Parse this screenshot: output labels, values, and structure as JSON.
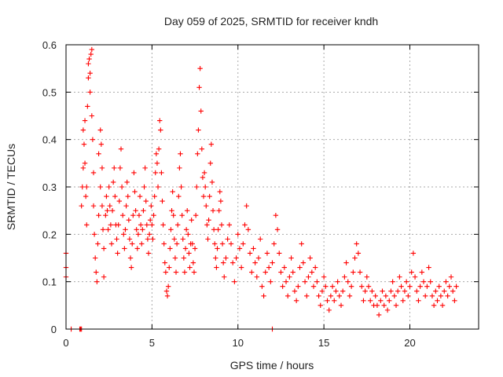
{
  "chart_data": {
    "type": "scatter",
    "title": "Day 059 of 2025, SRMTID for receiver kndh",
    "xlabel": "GPS time / hours",
    "ylabel": "SRMTID / TECUs",
    "xlim": [
      0,
      24
    ],
    "ylim": [
      0,
      0.6
    ],
    "xticks": [
      0,
      5,
      10,
      15,
      20
    ],
    "yticks": [
      0,
      0.1,
      0.2,
      0.3,
      0.4,
      0.5,
      0.6
    ],
    "grid": true,
    "marker": "+",
    "color": "#ff0000",
    "series": [
      {
        "name": "SRMTID",
        "points": [
          [
            0.0,
            0.16
          ],
          [
            0.0,
            0.13
          ],
          [
            0.0,
            0.11
          ],
          [
            0.3,
            0.0
          ],
          [
            0.8,
            0.0
          ],
          [
            0.85,
            0.0
          ],
          [
            0.9,
            0.0
          ],
          [
            0.9,
            0.26
          ],
          [
            0.95,
            0.3
          ],
          [
            1.0,
            0.34
          ],
          [
            1.0,
            0.42
          ],
          [
            1.05,
            0.39
          ],
          [
            1.1,
            0.44
          ],
          [
            1.1,
            0.35
          ],
          [
            1.15,
            0.28
          ],
          [
            1.2,
            0.3
          ],
          [
            1.2,
            0.22
          ],
          [
            1.25,
            0.47
          ],
          [
            1.3,
            0.53
          ],
          [
            1.3,
            0.56
          ],
          [
            1.35,
            0.57
          ],
          [
            1.4,
            0.54
          ],
          [
            1.4,
            0.5
          ],
          [
            1.45,
            0.58
          ],
          [
            1.5,
            0.59
          ],
          [
            1.5,
            0.45
          ],
          [
            1.55,
            0.4
          ],
          [
            1.6,
            0.33
          ],
          [
            1.6,
            0.26
          ],
          [
            1.65,
            0.2
          ],
          [
            1.7,
            0.15
          ],
          [
            1.75,
            0.12
          ],
          [
            1.8,
            0.1
          ],
          [
            1.85,
            0.18
          ],
          [
            1.9,
            0.24
          ],
          [
            1.9,
            0.37
          ],
          [
            2.0,
            0.42
          ],
          [
            2.0,
            0.3
          ],
          [
            2.05,
            0.39
          ],
          [
            2.1,
            0.34
          ],
          [
            2.1,
            0.26
          ],
          [
            2.15,
            0.21
          ],
          [
            2.2,
            0.17
          ],
          [
            2.2,
            0.11
          ],
          [
            2.3,
            0.24
          ],
          [
            2.35,
            0.28
          ],
          [
            2.4,
            0.25
          ],
          [
            2.45,
            0.21
          ],
          [
            2.5,
            0.3
          ],
          [
            2.55,
            0.26
          ],
          [
            2.6,
            0.22
          ],
          [
            2.65,
            0.18
          ],
          [
            2.7,
            0.25
          ],
          [
            2.75,
            0.31
          ],
          [
            2.8,
            0.34
          ],
          [
            2.85,
            0.28
          ],
          [
            2.9,
            0.22
          ],
          [
            2.95,
            0.19
          ],
          [
            3.0,
            0.16
          ],
          [
            3.05,
            0.22
          ],
          [
            3.1,
            0.27
          ],
          [
            3.15,
            0.34
          ],
          [
            3.2,
            0.38
          ],
          [
            3.25,
            0.3
          ],
          [
            3.3,
            0.24
          ],
          [
            3.35,
            0.2
          ],
          [
            3.4,
            0.17
          ],
          [
            3.45,
            0.21
          ],
          [
            3.5,
            0.26
          ],
          [
            3.55,
            0.31
          ],
          [
            3.6,
            0.28
          ],
          [
            3.65,
            0.23
          ],
          [
            3.7,
            0.19
          ],
          [
            3.75,
            0.15
          ],
          [
            3.8,
            0.13
          ],
          [
            3.85,
            0.18
          ],
          [
            3.9,
            0.24
          ],
          [
            3.95,
            0.33
          ],
          [
            4.0,
            0.29
          ],
          [
            4.05,
            0.25
          ],
          [
            4.1,
            0.21
          ],
          [
            4.15,
            0.17
          ],
          [
            4.2,
            0.2
          ],
          [
            4.25,
            0.24
          ],
          [
            4.3,
            0.28
          ],
          [
            4.35,
            0.22
          ],
          [
            4.4,
            0.18
          ],
          [
            4.45,
            0.21
          ],
          [
            4.5,
            0.25
          ],
          [
            4.55,
            0.3
          ],
          [
            4.6,
            0.34
          ],
          [
            4.65,
            0.27
          ],
          [
            4.7,
            0.22
          ],
          [
            4.75,
            0.19
          ],
          [
            4.8,
            0.16
          ],
          [
            4.85,
            0.2
          ],
          [
            4.9,
            0.23
          ],
          [
            4.95,
            0.26
          ],
          [
            5.0,
            0.22
          ],
          [
            5.05,
            0.19
          ],
          [
            5.1,
            0.24
          ],
          [
            5.15,
            0.28
          ],
          [
            5.2,
            0.33
          ],
          [
            5.25,
            0.37
          ],
          [
            5.3,
            0.35
          ],
          [
            5.35,
            0.3
          ],
          [
            5.4,
            0.38
          ],
          [
            5.45,
            0.44
          ],
          [
            5.5,
            0.42
          ],
          [
            5.55,
            0.33
          ],
          [
            5.6,
            0.27
          ],
          [
            5.65,
            0.22
          ],
          [
            5.7,
            0.18
          ],
          [
            5.75,
            0.14
          ],
          [
            5.8,
            0.12
          ],
          [
            5.85,
            0.08
          ],
          [
            5.9,
            0.07
          ],
          [
            5.95,
            0.09
          ],
          [
            6.0,
            0.13
          ],
          [
            6.05,
            0.17
          ],
          [
            6.1,
            0.21
          ],
          [
            6.15,
            0.25
          ],
          [
            6.2,
            0.29
          ],
          [
            6.25,
            0.24
          ],
          [
            6.3,
            0.19
          ],
          [
            6.35,
            0.15
          ],
          [
            6.4,
            0.12
          ],
          [
            6.45,
            0.18
          ],
          [
            6.5,
            0.22
          ],
          [
            6.55,
            0.28
          ],
          [
            6.6,
            0.34
          ],
          [
            6.65,
            0.37
          ],
          [
            6.7,
            0.3
          ],
          [
            6.75,
            0.24
          ],
          [
            6.8,
            0.19
          ],
          [
            6.85,
            0.15
          ],
          [
            6.9,
            0.12
          ],
          [
            6.95,
            0.17
          ],
          [
            7.0,
            0.21
          ],
          [
            7.05,
            0.25
          ],
          [
            7.1,
            0.2
          ],
          [
            7.15,
            0.16
          ],
          [
            7.2,
            0.13
          ],
          [
            7.25,
            0.18
          ],
          [
            7.3,
            0.23
          ],
          [
            7.35,
            0.18
          ],
          [
            7.4,
            0.14
          ],
          [
            7.45,
            0.12
          ],
          [
            7.5,
            0.17
          ],
          [
            7.55,
            0.24
          ],
          [
            7.6,
            0.3
          ],
          [
            7.65,
            0.37
          ],
          [
            7.7,
            0.42
          ],
          [
            7.75,
            0.51
          ],
          [
            7.8,
            0.55
          ],
          [
            7.85,
            0.46
          ],
          [
            7.9,
            0.38
          ],
          [
            7.95,
            0.32
          ],
          [
            8.0,
            0.28
          ],
          [
            8.05,
            0.33
          ],
          [
            8.1,
            0.3
          ],
          [
            8.15,
            0.26
          ],
          [
            8.2,
            0.22
          ],
          [
            8.25,
            0.19
          ],
          [
            8.3,
            0.23
          ],
          [
            8.35,
            0.28
          ],
          [
            8.4,
            0.35
          ],
          [
            8.45,
            0.39
          ],
          [
            8.5,
            0.31
          ],
          [
            8.55,
            0.25
          ],
          [
            8.6,
            0.21
          ],
          [
            8.65,
            0.18
          ],
          [
            8.7,
            0.15
          ],
          [
            8.75,
            0.13
          ],
          [
            8.8,
            0.17
          ],
          [
            8.85,
            0.21
          ],
          [
            8.9,
            0.25
          ],
          [
            8.95,
            0.29
          ],
          [
            9.0,
            0.27
          ],
          [
            9.05,
            0.22
          ],
          [
            9.1,
            0.18
          ],
          [
            9.15,
            0.14
          ],
          [
            9.2,
            0.11
          ],
          [
            9.3,
            0.15
          ],
          [
            9.4,
            0.19
          ],
          [
            9.5,
            0.22
          ],
          [
            9.6,
            0.18
          ],
          [
            9.7,
            0.14
          ],
          [
            9.8,
            0.1
          ],
          [
            9.9,
            0.15
          ],
          [
            10.0,
            0.2
          ],
          [
            10.1,
            0.17
          ],
          [
            10.2,
            0.13
          ],
          [
            10.3,
            0.18
          ],
          [
            10.4,
            0.22
          ],
          [
            10.5,
            0.26
          ],
          [
            10.6,
            0.21
          ],
          [
            10.7,
            0.16
          ],
          [
            10.8,
            0.12
          ],
          [
            10.9,
            0.17
          ],
          [
            11.0,
            0.14
          ],
          [
            11.1,
            0.11
          ],
          [
            11.2,
            0.15
          ],
          [
            11.3,
            0.19
          ],
          [
            11.4,
            0.09
          ],
          [
            11.5,
            0.07
          ],
          [
            11.6,
            0.12
          ],
          [
            11.7,
            0.16
          ],
          [
            11.8,
            0.13
          ],
          [
            11.9,
            0.1
          ],
          [
            12.0,
            0.14
          ],
          [
            12.0,
            0.0
          ],
          [
            12.1,
            0.18
          ],
          [
            12.2,
            0.24
          ],
          [
            12.3,
            0.21
          ],
          [
            12.4,
            0.16
          ],
          [
            12.5,
            0.12
          ],
          [
            12.6,
            0.09
          ],
          [
            12.7,
            0.13
          ],
          [
            12.8,
            0.1
          ],
          [
            12.9,
            0.07
          ],
          [
            13.0,
            0.11
          ],
          [
            13.1,
            0.15
          ],
          [
            13.2,
            0.12
          ],
          [
            13.3,
            0.08
          ],
          [
            13.4,
            0.06
          ],
          [
            13.5,
            0.09
          ],
          [
            13.6,
            0.13
          ],
          [
            13.7,
            0.18
          ],
          [
            13.8,
            0.14
          ],
          [
            13.9,
            0.1
          ],
          [
            14.0,
            0.07
          ],
          [
            14.1,
            0.11
          ],
          [
            14.2,
            0.15
          ],
          [
            14.3,
            0.12
          ],
          [
            14.4,
            0.09
          ],
          [
            14.5,
            0.13
          ],
          [
            14.6,
            0.1
          ],
          [
            14.7,
            0.07
          ],
          [
            14.8,
            0.05
          ],
          [
            14.9,
            0.08
          ],
          [
            15.0,
            0.11
          ],
          [
            15.1,
            0.09
          ],
          [
            15.2,
            0.06
          ],
          [
            15.3,
            0.04
          ],
          [
            15.4,
            0.07
          ],
          [
            15.5,
            0.09
          ],
          [
            15.6,
            0.06
          ],
          [
            15.7,
            0.08
          ],
          [
            15.8,
            0.1
          ],
          [
            15.9,
            0.07
          ],
          [
            16.0,
            0.05
          ],
          [
            16.1,
            0.08
          ],
          [
            16.2,
            0.11
          ],
          [
            16.3,
            0.14
          ],
          [
            16.4,
            0.1
          ],
          [
            16.5,
            0.07
          ],
          [
            16.6,
            0.09
          ],
          [
            16.7,
            0.12
          ],
          [
            16.8,
            0.15
          ],
          [
            16.9,
            0.18
          ],
          [
            17.0,
            0.16
          ],
          [
            17.1,
            0.12
          ],
          [
            17.2,
            0.09
          ],
          [
            17.3,
            0.06
          ],
          [
            17.4,
            0.08
          ],
          [
            17.5,
            0.11
          ],
          [
            17.6,
            0.09
          ],
          [
            17.7,
            0.06
          ],
          [
            17.8,
            0.08
          ],
          [
            17.9,
            0.05
          ],
          [
            18.0,
            0.07
          ],
          [
            18.1,
            0.05
          ],
          [
            18.2,
            0.03
          ],
          [
            18.3,
            0.06
          ],
          [
            18.4,
            0.08
          ],
          [
            18.5,
            0.05
          ],
          [
            18.6,
            0.07
          ],
          [
            18.7,
            0.04
          ],
          [
            18.8,
            0.06
          ],
          [
            18.9,
            0.08
          ],
          [
            19.0,
            0.1
          ],
          [
            19.1,
            0.07
          ],
          [
            19.2,
            0.05
          ],
          [
            19.3,
            0.08
          ],
          [
            19.4,
            0.11
          ],
          [
            19.5,
            0.09
          ],
          [
            19.6,
            0.06
          ],
          [
            19.7,
            0.08
          ],
          [
            19.8,
            0.1
          ],
          [
            19.9,
            0.07
          ],
          [
            20.0,
            0.09
          ],
          [
            20.1,
            0.12
          ],
          [
            20.2,
            0.16
          ],
          [
            20.3,
            0.11
          ],
          [
            20.4,
            0.08
          ],
          [
            20.5,
            0.06
          ],
          [
            20.6,
            0.09
          ],
          [
            20.7,
            0.12
          ],
          [
            20.8,
            0.1
          ],
          [
            20.9,
            0.07
          ],
          [
            21.0,
            0.09
          ],
          [
            21.1,
            0.13
          ],
          [
            21.2,
            0.1
          ],
          [
            21.3,
            0.07
          ],
          [
            21.4,
            0.05
          ],
          [
            21.5,
            0.08
          ],
          [
            21.6,
            0.06
          ],
          [
            21.7,
            0.09
          ],
          [
            21.8,
            0.07
          ],
          [
            21.9,
            0.05
          ],
          [
            22.0,
            0.08
          ],
          [
            22.1,
            0.1
          ],
          [
            22.2,
            0.07
          ],
          [
            22.3,
            0.09
          ],
          [
            22.4,
            0.11
          ],
          [
            22.5,
            0.08
          ],
          [
            22.6,
            0.06
          ],
          [
            22.7,
            0.09
          ]
        ]
      }
    ]
  }
}
